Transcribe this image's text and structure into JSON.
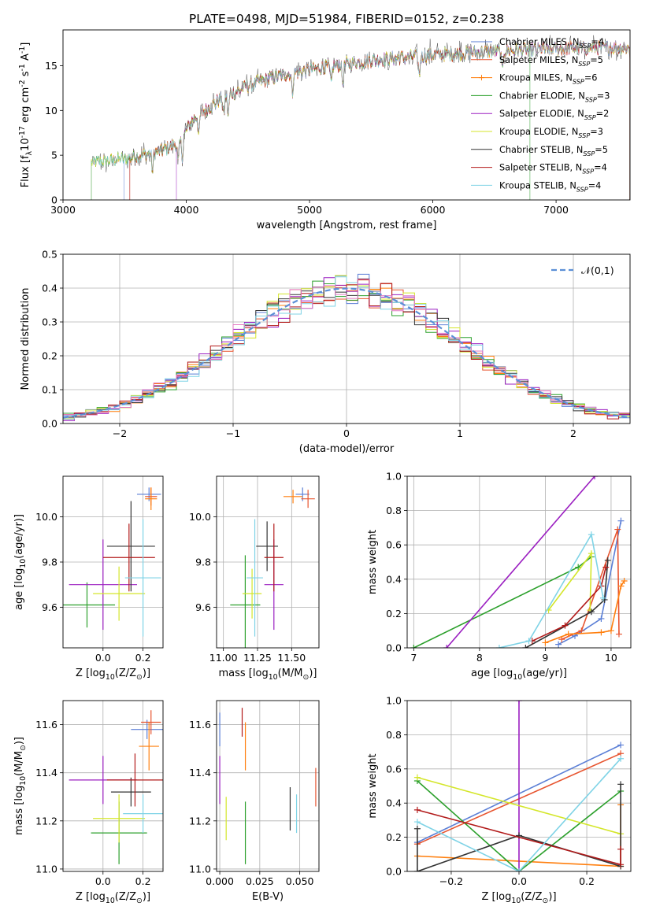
{
  "figure_title": "PLATE=0498, MJD=51984, FIBERID=0152, z=0.238",
  "series_names": [
    "Chabrier MILES, N$_{SSP}$=4",
    "Salpeter MILES, N$_{SSP}$=5",
    "Kroupa MILES, N$_{SSP}$=6",
    "Chabrier ELODIE, N$_{SSP}$=3",
    "Salpeter ELODIE, N$_{SSP}$=2",
    "Kroupa ELODIE, N$_{SSP}$=3",
    "Chabrier STELIB, N$_{SSP}$=5",
    "Salpeter STELIB, N$_{SSP}$=4",
    "Kroupa STELIB, N$_{SSP}$=4"
  ],
  "colors": [
    "#5b7fd6",
    "#e7542f",
    "#ff7f0e",
    "#2ca02c",
    "#9b1fc1",
    "#d4e62a",
    "#333333",
    "#b21a1a",
    "#7fd3e6"
  ],
  "chart_data": [
    {
      "id": "spectrum",
      "type": "line",
      "xlabel": "wavelength [Angstrom, rest frame]",
      "ylabel": "Flux [f$_\\lambda$10$^{-17}$ erg cm$^{-2}$ s$^{-1}$ A$^{-1}$]",
      "xlim": [
        3000,
        7600
      ],
      "ylim": [
        0,
        19
      ],
      "xticks": [
        "3000",
        "4000",
        "5000",
        "6000",
        "7000"
      ],
      "yticks": [
        "0",
        "5",
        "10",
        "15"
      ],
      "continuum_points": [
        [
          3230,
          4.2
        ],
        [
          3500,
          4.6
        ],
        [
          3800,
          5.5
        ],
        [
          3950,
          6.5
        ],
        [
          4050,
          9.0
        ],
        [
          4300,
          11.5
        ],
        [
          4550,
          13.0
        ],
        [
          4800,
          14.0
        ],
        [
          5100,
          14.8
        ],
        [
          5500,
          15.6
        ],
        [
          6000,
          16.2
        ],
        [
          6500,
          16.6
        ],
        [
          7000,
          16.9
        ],
        [
          7400,
          17.0
        ]
      ],
      "legend_position": "upper right",
      "grid": false
    },
    {
      "id": "residual_hist",
      "type": "histogram",
      "xlabel": "(data-model)/error",
      "ylabel": "Normed distribution",
      "xlim": [
        -2.5,
        2.5
      ],
      "ylim": [
        0,
        0.5
      ],
      "xticks": [
        "−2",
        "−1",
        "0",
        "1",
        "2"
      ],
      "yticks": [
        "0.0",
        "0.1",
        "0.2",
        "0.3",
        "0.4",
        "0.5"
      ],
      "reference_curve": "normal(0,1)",
      "legend": [
        "$\\mathcal{N}(0,1)$"
      ],
      "legend_position": "upper right",
      "grid": true
    },
    {
      "id": "age_vs_Z",
      "type": "scatter",
      "xlabel": "Z [log$_{10}$(Z/Z$_\\odot$)]",
      "ylabel": "age  [log$_{10}$(age/yr)]",
      "xlim": [
        -0.2,
        0.3
      ],
      "ylim": [
        9.42,
        10.18
      ],
      "xticks": [
        "0.0",
        "0.2"
      ],
      "yticks": [
        "9.6",
        "9.8",
        "10.0"
      ],
      "points": [
        {
          "x": 0.23,
          "y": 10.1,
          "xerr": 0.06,
          "yerr": 0.03
        },
        {
          "x": 0.24,
          "y": 10.09,
          "xerr": 0.03,
          "yerr": 0.04
        },
        {
          "x": 0.24,
          "y": 10.08,
          "xerr": 0.03,
          "yerr": 0.05
        },
        {
          "x": -0.08,
          "y": 9.61,
          "xerr": 0.14,
          "yerr": 0.1
        },
        {
          "x": 0.0,
          "y": 9.7,
          "xerr": 0.17,
          "yerr": 0.2
        },
        {
          "x": 0.08,
          "y": 9.66,
          "xerr": 0.13,
          "yerr": 0.12
        },
        {
          "x": 0.14,
          "y": 9.87,
          "xerr": 0.12,
          "yerr": 0.2
        },
        {
          "x": 0.13,
          "y": 9.82,
          "xerr": 0.13,
          "yerr": 0.15
        },
        {
          "x": 0.2,
          "y": 9.73,
          "xerr": 0.09,
          "yerr": 0.26
        }
      ],
      "grid": true
    },
    {
      "id": "age_vs_mass",
      "type": "scatter",
      "xlabel": "mass [log$_{10}$(M/M$_\\odot$)]",
      "ylabel": "",
      "xlim": [
        10.95,
        11.7
      ],
      "ylim": [
        9.42,
        10.18
      ],
      "xticks": [
        "11.00",
        "11.25",
        "11.50"
      ],
      "yticks": [
        "9.6",
        "9.8",
        "10.0"
      ],
      "points": [
        {
          "x": 11.58,
          "y": 10.1,
          "xerr": 0.05,
          "yerr": 0.03
        },
        {
          "x": 11.62,
          "y": 10.08,
          "xerr": 0.05,
          "yerr": 0.04
        },
        {
          "x": 11.51,
          "y": 10.09,
          "xerr": 0.07,
          "yerr": 0.03
        },
        {
          "x": 11.16,
          "y": 9.61,
          "xerr": 0.11,
          "yerr": 0.22
        },
        {
          "x": 11.37,
          "y": 9.7,
          "xerr": 0.07,
          "yerr": 0.2
        },
        {
          "x": 11.21,
          "y": 9.66,
          "xerr": 0.07,
          "yerr": 0.11
        },
        {
          "x": 11.32,
          "y": 9.87,
          "xerr": 0.08,
          "yerr": 0.11
        },
        {
          "x": 11.37,
          "y": 9.82,
          "xerr": 0.07,
          "yerr": 0.15
        },
        {
          "x": 11.23,
          "y": 9.73,
          "xerr": 0.06,
          "yerr": 0.26
        }
      ],
      "grid": true
    },
    {
      "id": "massweight_vs_age",
      "type": "line",
      "xlabel": "age  [log$_{10}$(age/yr)]",
      "ylabel": "mass weight",
      "xlim": [
        6.9,
        10.3
      ],
      "ylim": [
        0,
        1
      ],
      "xticks": [
        "7",
        "8",
        "9",
        "10"
      ],
      "yticks": [
        "0.0",
        "0.2",
        "0.4",
        "0.6",
        "0.8",
        "1.0"
      ],
      "series": [
        {
          "x": [
            9.2,
            9.45,
            9.85,
            10.15
          ],
          "y": [
            0.02,
            0.07,
            0.17,
            0.74
          ]
        },
        {
          "x": [
            9.25,
            9.55,
            10.1,
            10.12
          ],
          "y": [
            0.05,
            0.1,
            0.69,
            0.08
          ]
        },
        {
          "x": [
            9.0,
            9.35,
            9.85,
            10.0,
            10.15,
            10.2
          ],
          "y": [
            0.03,
            0.08,
            0.09,
            0.1,
            0.36,
            0.39
          ]
        },
        {
          "x": [
            7.0,
            9.5,
            9.7
          ],
          "y": [
            0.0,
            0.47,
            0.53
          ]
        },
        {
          "x": [
            7.5,
            9.75
          ],
          "y": [
            0.0,
            1.0
          ]
        },
        {
          "x": [
            9.05,
            9.7,
            9.68
          ],
          "y": [
            0.22,
            0.55,
            0.22
          ]
        },
        {
          "x": [
            8.7,
            9.7,
            9.9,
            9.95
          ],
          "y": [
            0.0,
            0.21,
            0.28,
            0.51
          ]
        },
        {
          "x": [
            8.8,
            9.3,
            9.85,
            9.92
          ],
          "y": [
            0.04,
            0.13,
            0.36,
            0.47
          ]
        },
        {
          "x": [
            8.3,
            8.75,
            9.7,
            9.88
          ],
          "y": [
            0.0,
            0.04,
            0.66,
            0.29
          ]
        }
      ],
      "grid": true
    },
    {
      "id": "mass_vs_Z",
      "type": "scatter",
      "xlabel": "Z [log$_{10}$(Z/Z$_\\odot$)]",
      "ylabel": "mass [log$_{10}$(M/M$_\\odot$)]",
      "xlim": [
        -0.2,
        0.3
      ],
      "ylim": [
        10.99,
        11.7
      ],
      "xticks": [
        "0.0",
        "0.2"
      ],
      "yticks": [
        "11.0",
        "11.2",
        "11.4",
        "11.6"
      ],
      "points": [
        {
          "x": 0.22,
          "y": 11.58,
          "xerr": 0.08,
          "yerr": 0.04
        },
        {
          "x": 0.24,
          "y": 11.61,
          "xerr": 0.05,
          "yerr": 0.05
        },
        {
          "x": 0.23,
          "y": 11.51,
          "xerr": 0.05,
          "yerr": 0.1
        },
        {
          "x": 0.08,
          "y": 11.15,
          "xerr": 0.14,
          "yerr": 0.13
        },
        {
          "x": 0.0,
          "y": 11.37,
          "xerr": 0.17,
          "yerr": 0.1
        },
        {
          "x": 0.08,
          "y": 11.21,
          "xerr": 0.13,
          "yerr": 0.1
        },
        {
          "x": 0.14,
          "y": 11.32,
          "xerr": 0.1,
          "yerr": 0.06
        },
        {
          "x": 0.16,
          "y": 11.37,
          "xerr": 0.14,
          "yerr": 0.11
        },
        {
          "x": 0.2,
          "y": 11.23,
          "xerr": 0.1,
          "yerr": 0.08
        }
      ],
      "grid": true
    },
    {
      "id": "mass_vs_ebv",
      "type": "scatter",
      "xlabel": "E(B-V)",
      "ylabel": "",
      "xlim": [
        -0.002,
        0.062
      ],
      "ylim": [
        10.99,
        11.7
      ],
      "xticks": [
        "0.000",
        "0.025",
        "0.050"
      ],
      "yticks": [
        "11.0",
        "11.2",
        "11.4",
        "11.6"
      ],
      "points": [
        {
          "x": 0.0,
          "y": 11.58,
          "yerr": 0.07
        },
        {
          "x": 0.06,
          "y": 11.34,
          "yerr": 0.08
        },
        {
          "x": 0.016,
          "y": 11.51,
          "yerr": 0.1
        },
        {
          "x": 0.016,
          "y": 11.15,
          "yerr": 0.13
        },
        {
          "x": 0.0,
          "y": 11.37,
          "yerr": 0.1
        },
        {
          "x": 0.004,
          "y": 11.21,
          "yerr": 0.09
        },
        {
          "x": 0.044,
          "y": 11.25,
          "yerr": 0.09
        },
        {
          "x": 0.014,
          "y": 11.61,
          "yerr": 0.06
        },
        {
          "x": 0.048,
          "y": 11.23,
          "yerr": 0.08
        }
      ],
      "grid": true
    },
    {
      "id": "massweight_vs_Z",
      "type": "line",
      "xlabel": "Z [log$_{10}$(Z/Z$_\\odot$)]",
      "ylabel": "mass weight",
      "xlim": [
        -0.33,
        0.33
      ],
      "ylim": [
        0,
        1
      ],
      "xticks": [
        "−0.2",
        "0.0",
        "0.2"
      ],
      "yticks": [
        "0.0",
        "0.2",
        "0.4",
        "0.6",
        "0.8",
        "1.0"
      ],
      "series": [
        {
          "x": [
            -0.3,
            0.3
          ],
          "y": [
            0.17,
            0.74
          ]
        },
        {
          "x": [
            -0.3,
            0.3
          ],
          "y": [
            0.16,
            0.69
          ]
        },
        {
          "x": [
            -0.3,
            0.3,
            0.3
          ],
          "y": [
            0.09,
            0.03,
            0.39
          ]
        },
        {
          "x": [
            -0.3,
            0.0,
            0.3
          ],
          "y": [
            0.53,
            0.0,
            0.47
          ]
        },
        {
          "x": [
            0.0,
            0.0
          ],
          "y": [
            0.0,
            1.0
          ]
        },
        {
          "x": [
            -0.3,
            0.3
          ],
          "y": [
            0.55,
            0.22
          ]
        },
        {
          "x": [
            -0.3,
            -0.3,
            0.0,
            0.3,
            0.3
          ],
          "y": [
            0.25,
            0.0,
            0.21,
            0.03,
            0.51
          ]
        },
        {
          "x": [
            -0.3,
            0.3,
            0.3
          ],
          "y": [
            0.36,
            0.04,
            0.13
          ]
        },
        {
          "x": [
            -0.3,
            0.0,
            0.3
          ],
          "y": [
            0.29,
            0.0,
            0.66
          ]
        }
      ],
      "grid": true
    }
  ]
}
